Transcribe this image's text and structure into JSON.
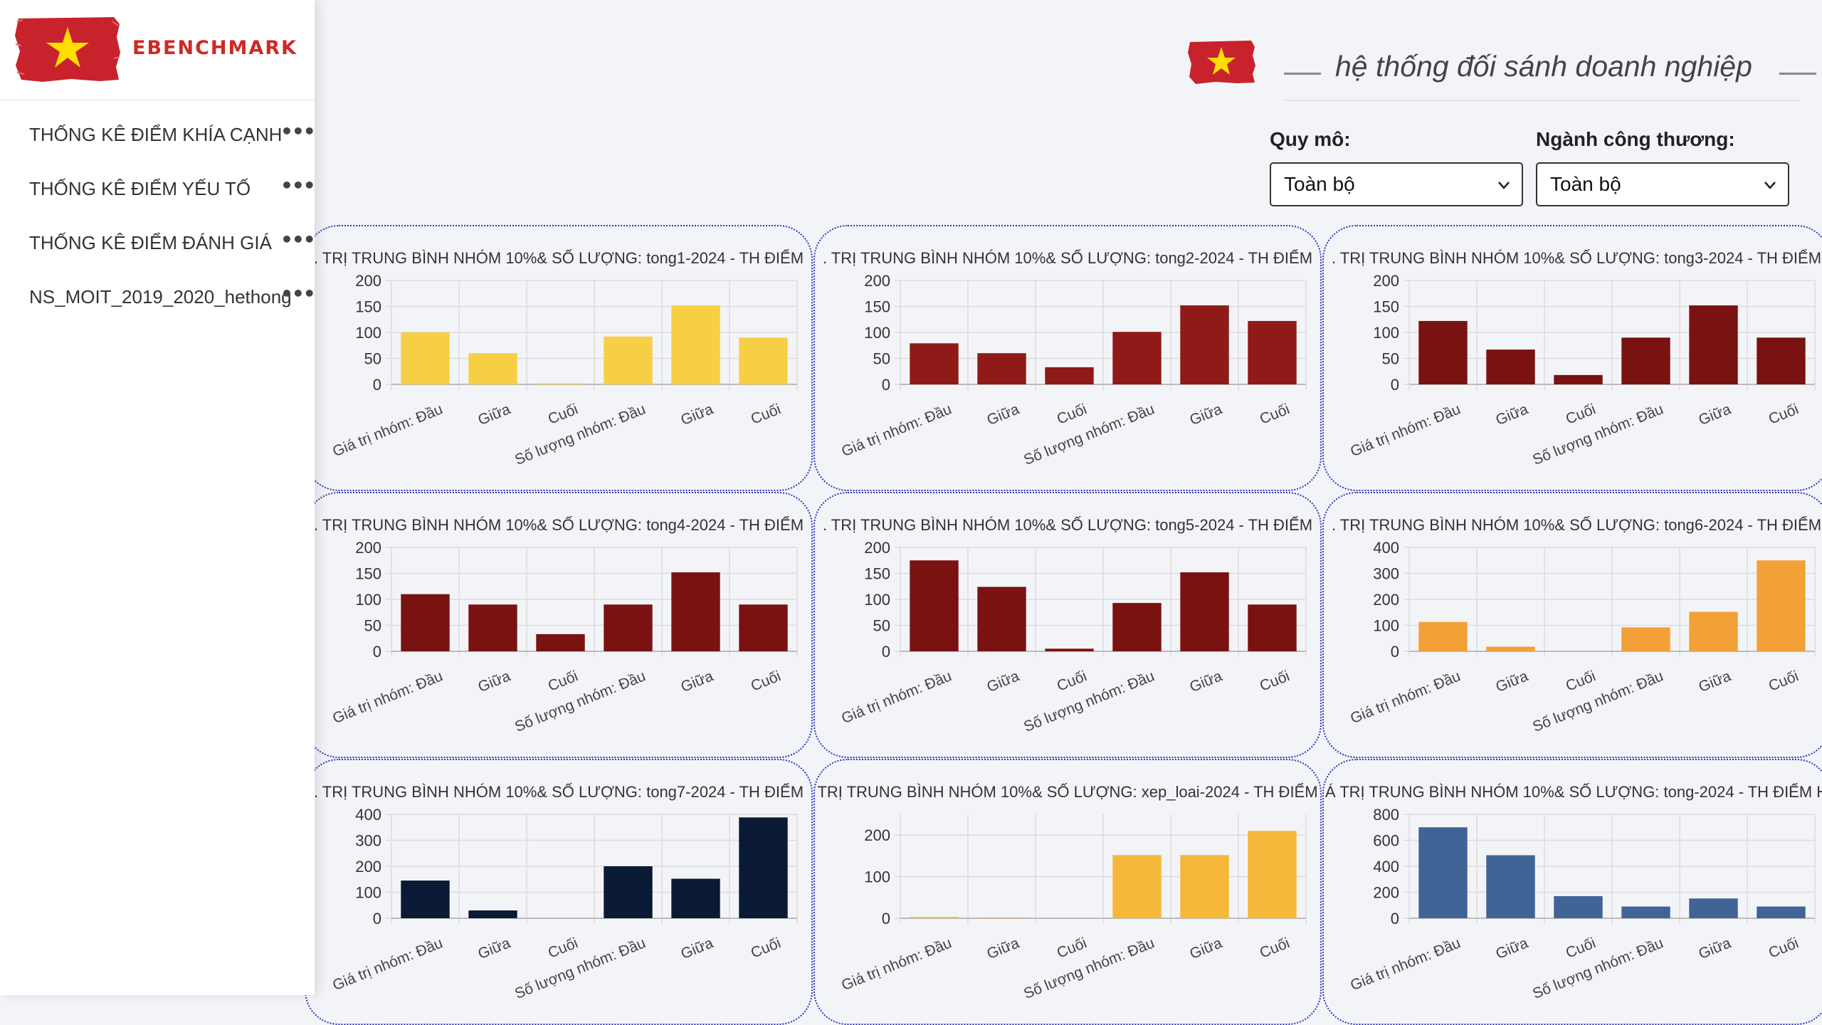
{
  "brand": {
    "name": "EBENCHMARK",
    "logo_icon": "vietnam-flag-icon"
  },
  "sidebar": {
    "items": [
      {
        "label": "THỐNG KÊ ĐIỂM KHÍA CẠNH",
        "more_icon": "more-dots-icon"
      },
      {
        "label": "THỐNG KÊ ĐIỂM YẾU TỐ",
        "more_icon": "more-dots-icon"
      },
      {
        "label": "THỐNG KÊ ĐIỂM ĐÁNH GIÁ",
        "more_icon": "more-dots-icon"
      },
      {
        "label": "NS_MOIT_2019_2020_hethong",
        "more_icon": "more-dots-icon"
      }
    ]
  },
  "header": {
    "title": "hệ thống đối sánh doanh nghiệp",
    "flag_icon": "vietnam-flag-icon"
  },
  "filters": {
    "scale": {
      "label": "Quy mô:",
      "value": "Toàn bộ"
    },
    "industry": {
      "label": "Ngành công thương:",
      "value": "Toàn bộ"
    }
  },
  "colors": {
    "yellow": "#f7cf45",
    "darkred": "#7a1212",
    "red": "#8e1b17",
    "orange": "#f3a037",
    "navy": "#0b1a34",
    "gold": "#f5b83a",
    "blue": "#3f6495"
  },
  "chart_data": [
    {
      "type": "bar",
      "title": ". TRỊ TRUNG BÌNH NHÓM 10%& SỐ LƯỢNG: tong1-2024 - TH ĐIỂM",
      "categories": [
        "Giá trị nhóm: Đầu",
        "Giữa",
        "Cuối",
        "Số lượng nhóm: Đầu",
        "Giữa",
        "Cuối"
      ],
      "values": [
        100,
        60,
        2,
        92,
        152,
        90
      ],
      "ylim": [
        0,
        200
      ],
      "yticks": [
        0,
        50,
        100,
        150,
        200
      ],
      "color": "#f7cf45"
    },
    {
      "type": "bar",
      "title": ". TRỊ TRUNG BÌNH NHÓM 10%& SỐ LƯỢNG: tong2-2024 - TH ĐIỂM",
      "categories": [
        "Giá trị nhóm: Đầu",
        "Giữa",
        "Cuối",
        "Số lượng nhóm: Đầu",
        "Giữa",
        "Cuối"
      ],
      "values": [
        79,
        60,
        33,
        101,
        152,
        122
      ],
      "ylim": [
        0,
        200
      ],
      "yticks": [
        0,
        50,
        100,
        150,
        200
      ],
      "color": "#8e1b17"
    },
    {
      "type": "bar",
      "title": ". TRỊ TRUNG BÌNH NHÓM 10%& SỐ LƯỢNG: tong3-2024 - TH ĐIỂM",
      "categories": [
        "Giá trị nhóm: Đầu",
        "Giữa",
        "Cuối",
        "Số lượng nhóm: Đầu",
        "Giữa",
        "Cuối"
      ],
      "values": [
        122,
        67,
        18,
        90,
        152,
        90
      ],
      "ylim": [
        0,
        200
      ],
      "yticks": [
        0,
        50,
        100,
        150,
        200
      ],
      "color": "#7a1212"
    },
    {
      "type": "bar",
      "title": ". TRỊ TRUNG BÌNH NHÓM 10%& SỐ LƯỢNG: tong4-2024 - TH ĐIỂM",
      "categories": [
        "Giá trị nhóm: Đầu",
        "Giữa",
        "Cuối",
        "Số lượng nhóm: Đầu",
        "Giữa",
        "Cuối"
      ],
      "values": [
        110,
        90,
        33,
        90,
        152,
        90
      ],
      "ylim": [
        0,
        200
      ],
      "yticks": [
        0,
        50,
        100,
        150,
        200
      ],
      "color": "#7a1212"
    },
    {
      "type": "bar",
      "title": ". TRỊ TRUNG BÌNH NHÓM 10%& SỐ LƯỢNG: tong5-2024 - TH ĐIỂM",
      "categories": [
        "Giá trị nhóm: Đầu",
        "Giữa",
        "Cuối",
        "Số lượng nhóm: Đầu",
        "Giữa",
        "Cuối"
      ],
      "values": [
        175,
        124,
        5,
        93,
        152,
        90
      ],
      "ylim": [
        0,
        200
      ],
      "yticks": [
        0,
        50,
        100,
        150,
        200
      ],
      "color": "#7a1212"
    },
    {
      "type": "bar",
      "title": ". TRỊ TRUNG BÌNH NHÓM 10%& SỐ LƯỢNG: tong6-2024 - TH ĐIỂM",
      "categories": [
        "Giá trị nhóm: Đầu",
        "Giữa",
        "Cuối",
        "Số lượng nhóm: Đầu",
        "Giữa",
        "Cuối"
      ],
      "values": [
        113,
        18,
        0,
        92,
        152,
        350
      ],
      "ylim": [
        0,
        400
      ],
      "yticks": [
        0,
        100,
        200,
        300,
        400
      ],
      "color": "#f3a037"
    },
    {
      "type": "bar",
      "title": ". TRỊ TRUNG BÌNH NHÓM 10%& SỐ LƯỢNG: tong7-2024 - TH ĐIỂM",
      "categories": [
        "Giá trị nhóm: Đầu",
        "Giữa",
        "Cuối",
        "Số lượng nhóm: Đầu",
        "Giữa",
        "Cuối"
      ],
      "values": [
        145,
        30,
        0,
        200,
        152,
        388
      ],
      "ylim": [
        0,
        400
      ],
      "yticks": [
        0,
        100,
        200,
        300,
        400
      ],
      "color": "#0b1a34"
    },
    {
      "type": "bar",
      "title": "TRỊ TRUNG BÌNH NHÓM 10%& SỐ LƯỢNG: xep_loai-2024 - TH ĐIỂM",
      "categories": [
        "Giá trị nhóm: Đầu",
        "Giữa",
        "Cuối",
        "Số lượng nhóm: Đầu",
        "Giữa",
        "Cuối"
      ],
      "values": [
        3,
        2,
        0,
        152,
        152,
        210
      ],
      "ylim": [
        0,
        250
      ],
      "yticks": [
        0,
        100,
        200
      ],
      "color": "#f5b83a"
    },
    {
      "type": "bar",
      "title": "Á TRỊ TRUNG BÌNH NHÓM 10%& SỐ LƯỢNG: tong-2024 - TH ĐIỂM H",
      "categories": [
        "Giá trị nhóm: Đầu",
        "Giữa",
        "Cuối",
        "Số lượng nhóm: Đầu",
        "Giữa",
        "Cuối"
      ],
      "values": [
        700,
        485,
        170,
        90,
        152,
        90
      ],
      "ylim": [
        0,
        800
      ],
      "yticks": [
        0,
        200,
        400,
        600,
        800
      ],
      "color": "#3f6495"
    }
  ]
}
